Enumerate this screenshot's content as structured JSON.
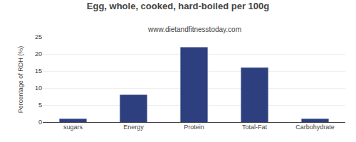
{
  "chart_data": {
    "type": "bar",
    "title": "Egg, whole, cooked, hard-boiled per 100g",
    "subtitle": "www.dietandfitnesstoday.com",
    "ylabel": "Percentage of RDH (%)",
    "categories": [
      "sugars",
      "Energy",
      "Protein",
      "Total-Fat",
      "Carbohydrate"
    ],
    "values": [
      1,
      8,
      22,
      16,
      1
    ],
    "color": "#2e3f7f",
    "ylim": [
      0,
      25
    ],
    "yticks": [
      0,
      5,
      10,
      15,
      20,
      25
    ],
    "grid": true
  }
}
